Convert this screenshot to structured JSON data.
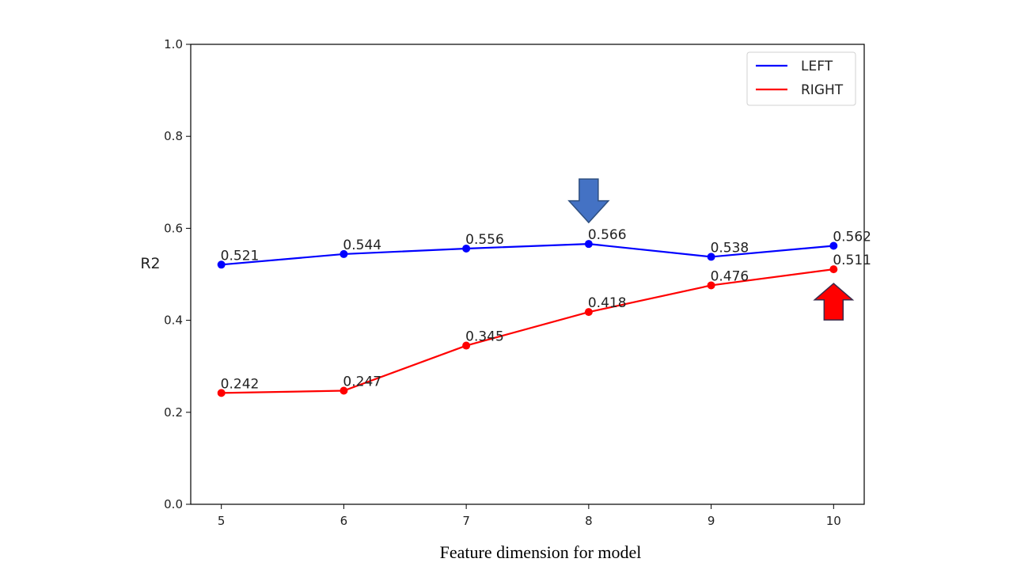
{
  "chart_data": {
    "type": "line",
    "x": [
      5,
      6,
      7,
      8,
      9,
      10
    ],
    "xticks": [
      "5",
      "6",
      "7",
      "8",
      "9",
      "10"
    ],
    "yticks": [
      "0.0",
      "0.2",
      "0.4",
      "0.6",
      "0.8",
      "1.0"
    ],
    "ylim": [
      0.0,
      1.0
    ],
    "xlim": [
      4.75,
      10.25
    ],
    "xlabel": "Feature dimension for model",
    "ylabel": "R2",
    "grid": false,
    "legend_position": "top-right",
    "series": [
      {
        "name": "LEFT",
        "color": "#0000ff",
        "values": [
          0.521,
          0.544,
          0.556,
          0.566,
          0.538,
          0.562
        ],
        "labels": [
          "0.521",
          "0.544",
          "0.556",
          "0.566",
          "0.538",
          "0.562"
        ]
      },
      {
        "name": "RIGHT",
        "color": "#ff0000",
        "values": [
          0.242,
          0.247,
          0.345,
          0.418,
          0.476,
          0.511
        ],
        "labels": [
          "0.242",
          "0.247",
          "0.345",
          "0.418",
          "0.476",
          "0.511"
        ]
      }
    ],
    "annotations": [
      {
        "shape": "down-arrow",
        "x": 8,
        "color": "#4472c4"
      },
      {
        "shape": "up-arrow",
        "x": 10,
        "color": "#ff0000"
      }
    ]
  }
}
